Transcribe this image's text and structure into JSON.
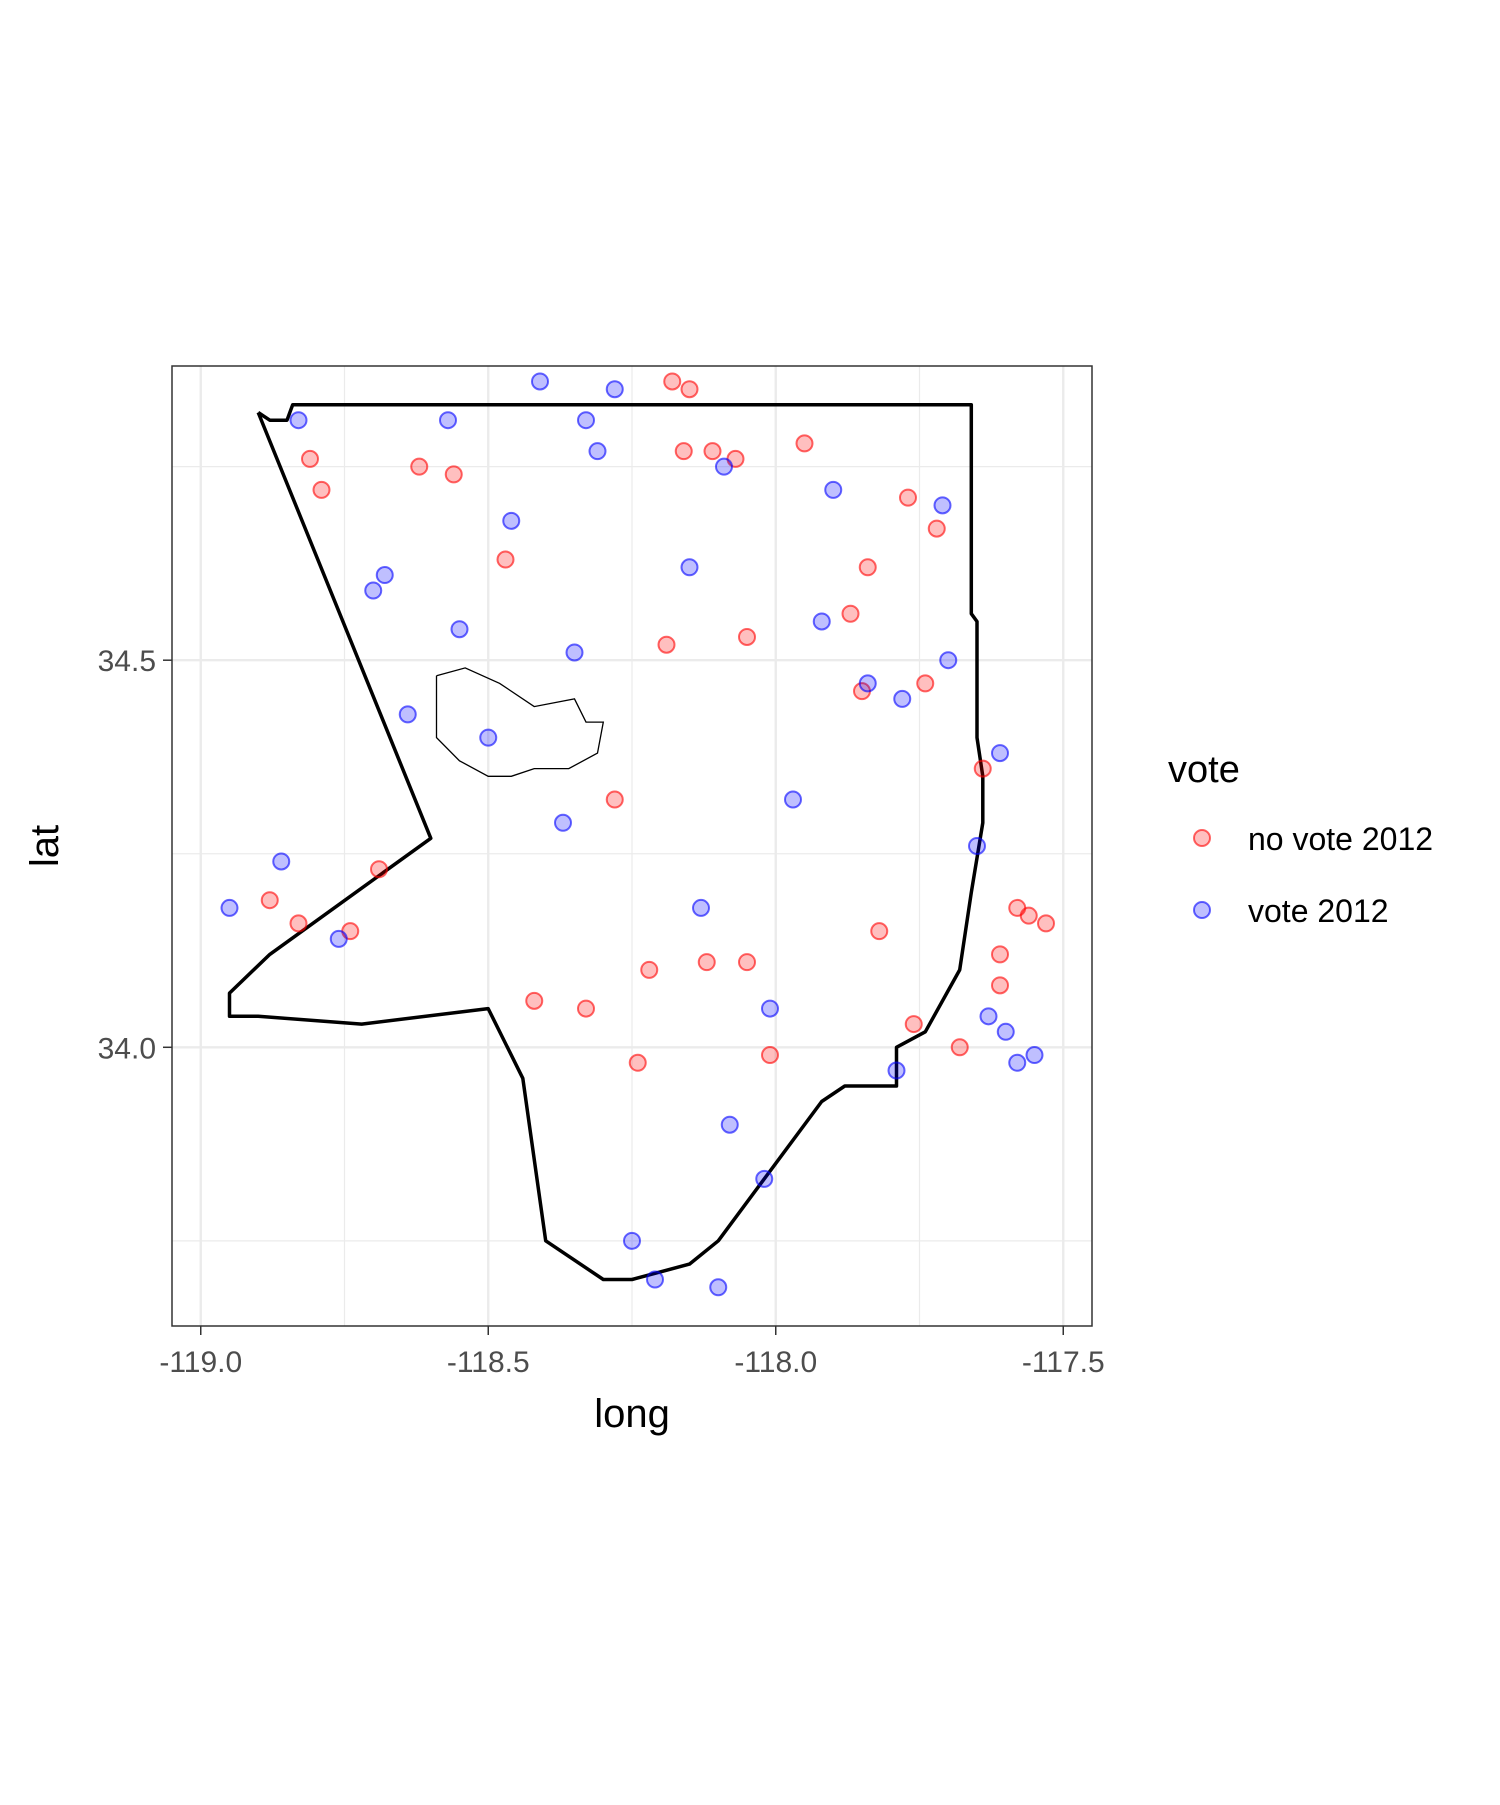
{
  "chart_data": {
    "type": "scatter",
    "title": "",
    "xlabel": "long",
    "ylabel": "lat",
    "xlim": [
      -119.05,
      -117.45
    ],
    "ylim": [
      33.64,
      34.88
    ],
    "x_ticks": [
      -119.0,
      -118.5,
      -118.0,
      -117.5
    ],
    "x_tick_labels": [
      "-119.0",
      "-118.5",
      "-118.0",
      "-117.5"
    ],
    "y_ticks": [
      34.0,
      34.5
    ],
    "y_tick_labels": [
      "34.0",
      "34.5"
    ],
    "grid": true,
    "legend": {
      "title": "vote",
      "placement": "right",
      "entries": [
        "no vote 2012",
        "vote 2012"
      ]
    },
    "colors": {
      "no vote 2012": "#ff0000",
      "vote 2012": "#0000ff"
    },
    "point_alpha": 0.25,
    "series": [
      {
        "name": "no vote 2012",
        "x": [
          -118.18,
          -118.15,
          -118.11,
          -118.07,
          -117.95,
          -117.77,
          -117.72,
          -118.62,
          -118.81,
          -118.79,
          -118.88,
          -118.69,
          -118.74,
          -118.24,
          -117.85,
          -118.05,
          -118.19,
          -118.28,
          -118.33,
          -118.22,
          -117.76,
          -117.68,
          -117.56,
          -117.61,
          -117.64,
          -118.83,
          -118.12,
          -118.42,
          -118.05,
          -118.01,
          -117.82,
          -117.74,
          -118.47,
          -118.56,
          -118.16,
          -117.84,
          -117.87,
          -117.58,
          -117.53,
          -117.61
        ],
        "y": [
          34.86,
          34.85,
          34.77,
          34.76,
          34.78,
          34.71,
          34.67,
          34.75,
          34.76,
          34.72,
          34.19,
          34.23,
          34.15,
          33.98,
          34.46,
          34.53,
          34.52,
          34.32,
          34.05,
          34.1,
          34.03,
          34.0,
          34.17,
          34.12,
          34.36,
          34.16,
          34.11,
          34.06,
          34.11,
          33.99,
          34.15,
          34.47,
          34.63,
          34.74,
          34.77,
          34.62,
          34.56,
          34.18,
          34.16,
          34.08
        ]
      },
      {
        "name": "vote 2012",
        "x": [
          -118.28,
          -118.57,
          -118.41,
          -118.33,
          -118.09,
          -117.9,
          -117.71,
          -117.61,
          -117.58,
          -117.55,
          -118.95,
          -118.86,
          -118.76,
          -118.68,
          -118.64,
          -118.25,
          -118.1,
          -118.02,
          -117.97,
          -117.92,
          -117.84,
          -117.78,
          -117.7,
          -118.46,
          -118.37,
          -118.5,
          -118.15,
          -118.01,
          -117.65,
          -118.31,
          -118.83,
          -118.7,
          -118.21,
          -118.13,
          -117.79,
          -117.63,
          -117.6,
          -118.55,
          -118.08,
          -118.35
        ],
        "y": [
          34.85,
          34.81,
          34.86,
          34.81,
          34.75,
          34.72,
          34.7,
          34.38,
          33.98,
          33.99,
          34.18,
          34.24,
          34.14,
          34.61,
          34.43,
          33.75,
          33.69,
          33.83,
          34.32,
          34.55,
          34.47,
          34.45,
          34.5,
          34.68,
          34.29,
          34.4,
          34.62,
          34.05,
          34.26,
          34.77,
          34.81,
          34.59,
          33.7,
          34.18,
          33.97,
          34.04,
          34.02,
          34.54,
          33.9,
          34.51
        ]
      }
    ],
    "boundary": {
      "outline": [
        [
          -118.9,
          34.82
        ],
        [
          -118.88,
          34.81
        ],
        [
          -118.85,
          34.81
        ],
        [
          -118.84,
          34.83
        ],
        [
          -118.4,
          34.83
        ],
        [
          -118.0,
          34.83
        ],
        [
          -117.78,
          34.83
        ],
        [
          -117.66,
          34.83
        ],
        [
          -117.66,
          34.56
        ],
        [
          -117.65,
          34.55
        ],
        [
          -117.65,
          34.4
        ],
        [
          -117.64,
          34.35
        ],
        [
          -117.64,
          34.29
        ],
        [
          -117.66,
          34.2
        ],
        [
          -117.68,
          34.1
        ],
        [
          -117.74,
          34.02
        ],
        [
          -117.79,
          34.0
        ],
        [
          -117.79,
          33.95
        ],
        [
          -117.88,
          33.95
        ],
        [
          -117.92,
          33.93
        ],
        [
          -118.1,
          33.75
        ],
        [
          -118.15,
          33.72
        ],
        [
          -118.25,
          33.7
        ],
        [
          -118.3,
          33.7
        ],
        [
          -118.4,
          33.75
        ],
        [
          -118.44,
          33.96
        ],
        [
          -118.5,
          34.05
        ],
        [
          -118.72,
          34.03
        ],
        [
          -118.9,
          34.04
        ],
        [
          -118.95,
          34.04
        ],
        [
          -118.95,
          34.07
        ],
        [
          -118.88,
          34.12
        ],
        [
          -118.6,
          34.27
        ],
        [
          -118.9,
          34.82
        ]
      ],
      "inner": [
        [
          -118.59,
          34.48
        ],
        [
          -118.54,
          34.49
        ],
        [
          -118.48,
          34.47
        ],
        [
          -118.42,
          34.44
        ],
        [
          -118.35,
          34.45
        ],
        [
          -118.33,
          34.42
        ],
        [
          -118.3,
          34.42
        ],
        [
          -118.31,
          34.38
        ],
        [
          -118.36,
          34.36
        ],
        [
          -118.42,
          34.36
        ],
        [
          -118.46,
          34.35
        ],
        [
          -118.5,
          34.35
        ],
        [
          -118.55,
          34.37
        ],
        [
          -118.59,
          34.4
        ],
        [
          -118.59,
          34.48
        ]
      ]
    }
  }
}
